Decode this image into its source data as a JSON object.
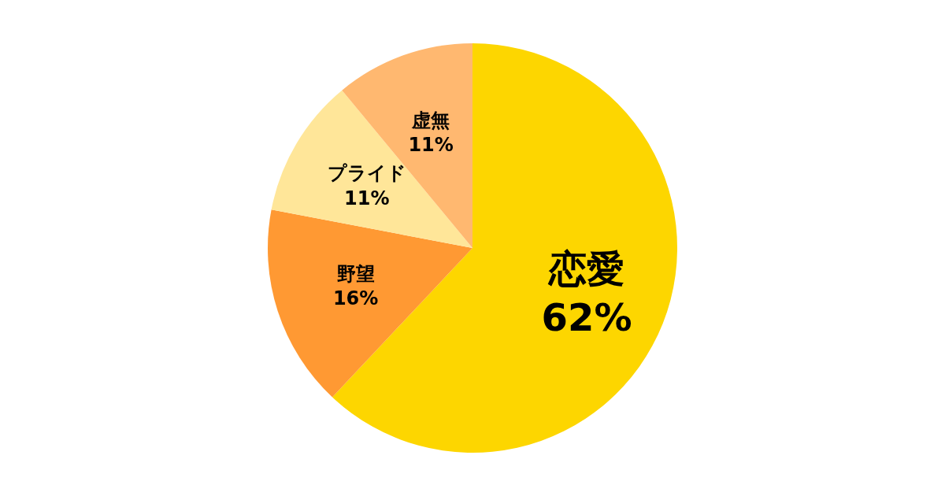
{
  "chart_data": {
    "type": "pie",
    "categories": [
      "恋愛",
      "野望",
      "プライド",
      "虚無"
    ],
    "values": [
      62,
      16,
      11,
      11
    ],
    "colors": [
      "#fdd600",
      "#ff9933",
      "#ffe699",
      "#ffb870"
    ],
    "value_labels": [
      "62%",
      "16%",
      "11%",
      "11%"
    ]
  }
}
